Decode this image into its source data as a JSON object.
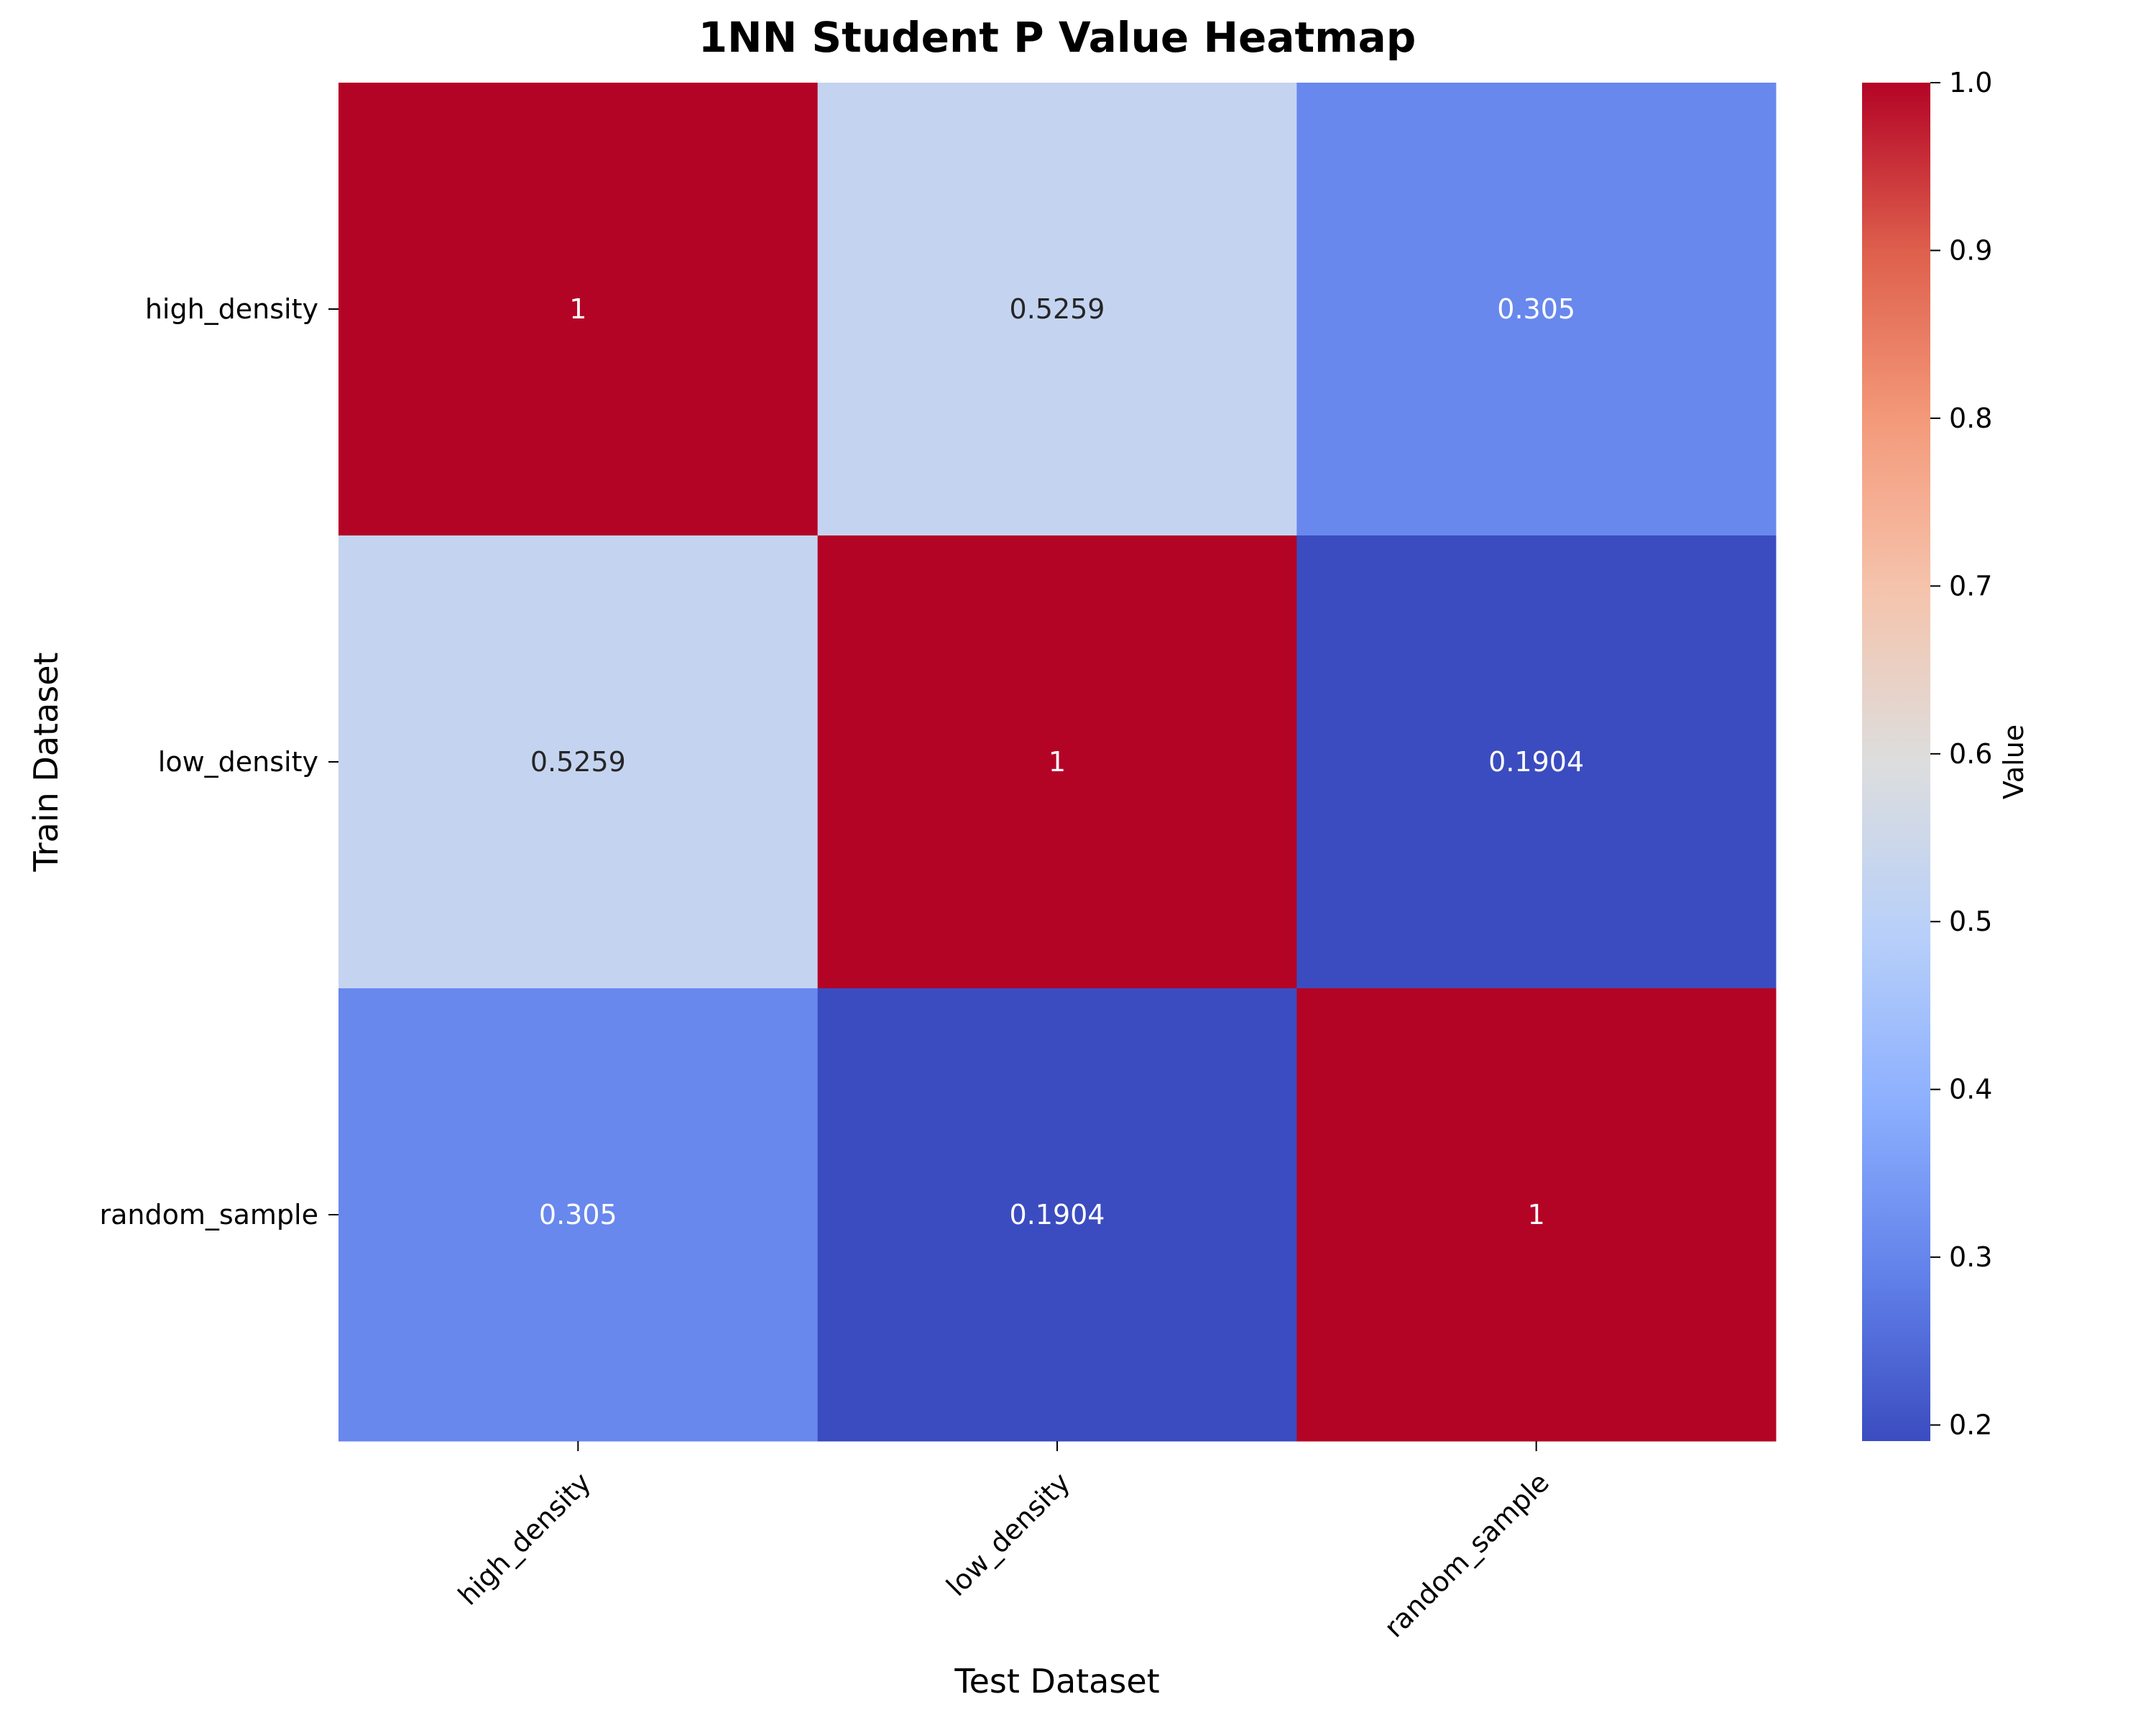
{
  "chart_data": {
    "type": "heatmap",
    "title": "1NN Student P Value Heatmap",
    "xlabel": "Test Dataset",
    "ylabel": "Train Dataset",
    "x_categories": [
      "high_density",
      "low_density",
      "random_sample"
    ],
    "y_categories": [
      "high_density",
      "low_density",
      "random_sample"
    ],
    "values": [
      [
        1,
        0.5259,
        0.305
      ],
      [
        0.5259,
        1,
        0.1904
      ],
      [
        0.305,
        0.1904,
        1
      ]
    ],
    "value_labels": [
      [
        "1",
        "0.5259",
        "0.305"
      ],
      [
        "0.5259",
        "1",
        "0.1904"
      ],
      [
        "0.305",
        "0.1904",
        "1"
      ]
    ],
    "colormap": "coolwarm",
    "colorbar": {
      "label": "Value",
      "range": [
        0.1904,
        1.0
      ],
      "ticks": [
        0.2,
        0.3,
        0.4,
        0.5,
        0.6,
        0.7,
        0.8,
        0.9,
        1.0
      ],
      "tick_labels": [
        "0.2",
        "0.3",
        "0.4",
        "0.5",
        "0.6",
        "0.7",
        "0.8",
        "0.9",
        "1.0"
      ]
    }
  }
}
